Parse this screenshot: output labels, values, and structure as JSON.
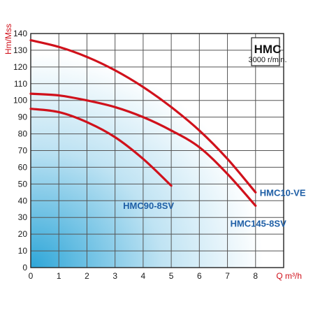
{
  "chart_data": {
    "type": "line",
    "title": "HMC",
    "subtitle": "3000 r/min.",
    "xlabel": "Q m³/h",
    "ylabel": "Hm/Mss",
    "xlim": [
      0,
      9
    ],
    "ylim": [
      0,
      140
    ],
    "xticks": [
      0,
      1,
      2,
      3,
      4,
      5,
      6,
      7,
      8
    ],
    "yticks": [
      0,
      10,
      20,
      30,
      40,
      50,
      60,
      70,
      80,
      90,
      100,
      110,
      120,
      130,
      140
    ],
    "grid": true,
    "legend": "none",
    "colors": {
      "series": "#d0111b",
      "label": "#1f5fa6",
      "grid": "#555555"
    },
    "series": [
      {
        "name": "HMC10-VE",
        "x": [
          0,
          1,
          2,
          3,
          4,
          5,
          6,
          7,
          8
        ],
        "y": [
          136,
          132,
          126,
          118,
          108,
          96,
          82,
          65,
          45
        ]
      },
      {
        "name": "HMC145-8SV",
        "x": [
          0,
          1,
          2,
          3,
          4,
          5,
          6,
          7,
          8
        ],
        "y": [
          104,
          103,
          100,
          96,
          90,
          82,
          72,
          56,
          37
        ]
      },
      {
        "name": "HMC90-8SV",
        "x": [
          0,
          1,
          2,
          3,
          4,
          5
        ],
        "y": [
          95,
          93,
          87,
          78,
          65,
          49
        ]
      }
    ]
  }
}
